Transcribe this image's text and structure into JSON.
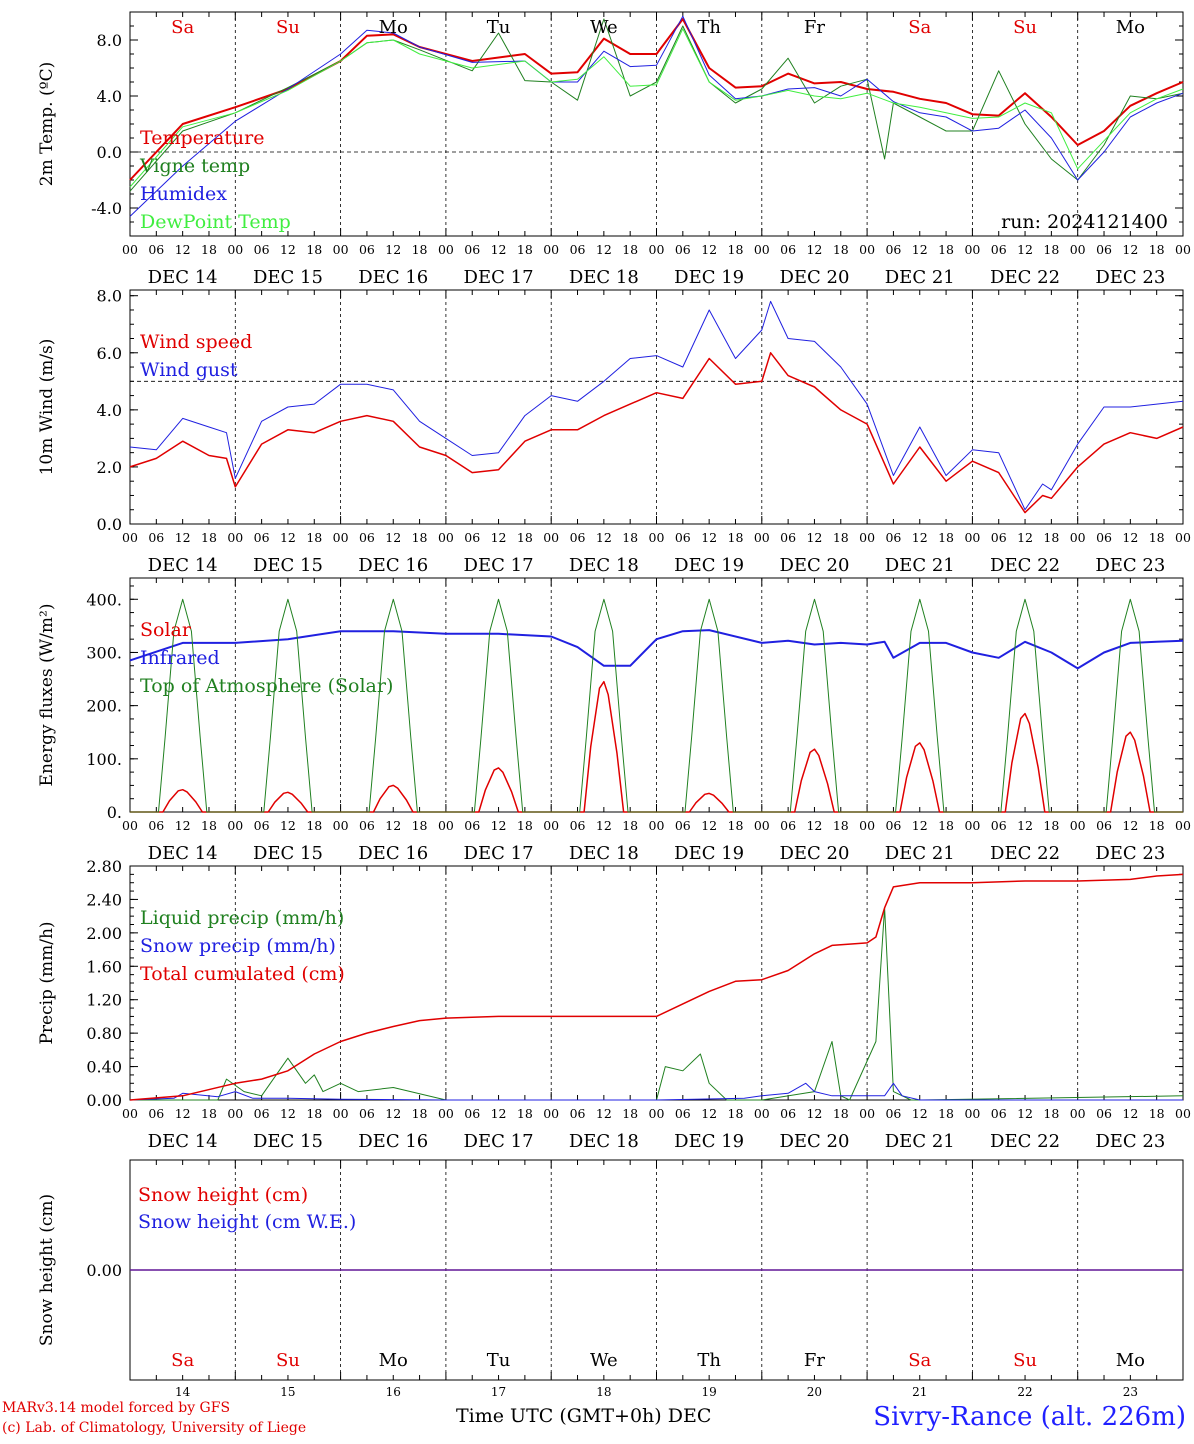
{
  "run_label": "run: 2024121400",
  "time_axis": {
    "hours": [
      "00",
      "06",
      "12",
      "18"
    ],
    "days": [
      "DEC 14",
      "DEC 15",
      "DEC 16",
      "DEC 17",
      "DEC 18",
      "DEC 19",
      "DEC 20",
      "DEC 21",
      "DEC 22",
      "DEC 23"
    ],
    "day_numbers": [
      "14",
      "15",
      "16",
      "17",
      "18",
      "19",
      "20",
      "21",
      "22",
      "23"
    ],
    "weekdays": [
      "Sa",
      "Su",
      "Mo",
      "Tu",
      "We",
      "Th",
      "Fr",
      "Sa",
      "Su",
      "Mo"
    ],
    "weekend_color": "#e00000",
    "weekday_color": "#000000"
  },
  "footer": {
    "model": "MARv3.14 model forced by GFS",
    "credit": "(c) Lab. of Climatology, University of Liege",
    "xlabel": "Time UTC (GMT+0h) DEC",
    "station": "Sivry-Rance (alt. 226m)"
  },
  "chart_data": [
    {
      "type": "line",
      "ylabel": "2m Temp. (ºC)",
      "ylim": [
        -6,
        10
      ],
      "yticks": [
        "-4.0",
        "0.0",
        "4.0",
        "8.0"
      ],
      "ytick_values": [
        -4,
        0,
        4,
        8
      ],
      "ref_lines": [
        0
      ],
      "x_unit": "hours since DEC 14 00 UTC",
      "series": [
        {
          "name": "Temperature",
          "color": "#e00000",
          "width": 2,
          "x": [
            0,
            12,
            24,
            36,
            48,
            54,
            60,
            66,
            78,
            90,
            96,
            102,
            108,
            114,
            120,
            126,
            132,
            138,
            144,
            150,
            156,
            162,
            168,
            174,
            180,
            186,
            192,
            198,
            204,
            210,
            216,
            222,
            228,
            234,
            240
          ],
          "y": [
            -2,
            2,
            3.2,
            4.5,
            6.5,
            8.3,
            8.4,
            7.5,
            6.5,
            7,
            5.6,
            5.7,
            8.1,
            7,
            7,
            9.5,
            6,
            4.6,
            4.7,
            5.6,
            4.9,
            5,
            4.5,
            4.3,
            3.8,
            3.5,
            2.7,
            2.6,
            4.2,
            2.5,
            0.5,
            1.5,
            3.3,
            4.2,
            5
          ]
        },
        {
          "name": "Vigne temp",
          "color": "#208020",
          "width": 1,
          "x": [
            0,
            12,
            24,
            36,
            48,
            54,
            60,
            66,
            78,
            84,
            90,
            96,
            102,
            108,
            114,
            120,
            126,
            132,
            138,
            144,
            150,
            156,
            162,
            168,
            172,
            174,
            180,
            186,
            192,
            198,
            204,
            210,
            216,
            222,
            228,
            234,
            240
          ],
          "y": [
            -2.8,
            1.5,
            2.8,
            4.6,
            6.5,
            7.8,
            8,
            7.3,
            5.8,
            8.5,
            5.1,
            5,
            3.7,
            9.5,
            4,
            5,
            9,
            5,
            3.5,
            4.5,
            6.7,
            3.5,
            4.7,
            5.2,
            -0.5,
            3.5,
            2.5,
            1.5,
            1.5,
            5.8,
            2,
            -0.5,
            -2,
            0.5,
            4,
            3.8,
            4.2
          ]
        },
        {
          "name": "Humidex",
          "color": "#2020e0",
          "width": 1,
          "x": [
            0,
            12,
            24,
            36,
            48,
            54,
            60,
            66,
            78,
            90,
            96,
            102,
            108,
            114,
            120,
            126,
            132,
            138,
            144,
            150,
            156,
            162,
            168,
            174,
            180,
            186,
            192,
            198,
            204,
            210,
            216,
            222,
            228,
            234,
            240
          ],
          "y": [
            -4.6,
            -1,
            2.2,
            4.5,
            7,
            8.7,
            8.5,
            7.5,
            6.4,
            6.5,
            5,
            5,
            7.2,
            6.1,
            6.2,
            9.7,
            5.5,
            3.8,
            4,
            4.5,
            4.6,
            4,
            5.2,
            3.6,
            2.8,
            2.5,
            1.5,
            1.7,
            3,
            1,
            -2,
            0,
            2.5,
            3.5,
            4.2
          ]
        },
        {
          "name": "DewPoint Temp",
          "color": "#40ee40",
          "width": 1,
          "x": [
            0,
            12,
            24,
            36,
            48,
            54,
            60,
            66,
            78,
            90,
            96,
            102,
            108,
            114,
            120,
            126,
            132,
            138,
            144,
            150,
            156,
            162,
            168,
            174,
            180,
            186,
            192,
            198,
            204,
            210,
            216,
            222,
            228,
            234,
            240
          ],
          "y": [
            -2.5,
            1.8,
            2.8,
            4.4,
            6.5,
            7.8,
            8,
            7,
            6,
            6.5,
            5,
            5.2,
            6.8,
            4.7,
            4.8,
            8.8,
            5,
            3.7,
            4,
            4.4,
            4,
            3.8,
            4.2,
            3.5,
            3.2,
            2.8,
            2.4,
            2.5,
            3.5,
            2.8,
            -1.2,
            0.8,
            2.8,
            3.8,
            4.5
          ]
        }
      ]
    },
    {
      "type": "line",
      "ylabel": "10m Wind (m/s)",
      "ylim": [
        0,
        8.2
      ],
      "yticks": [
        "0.0",
        "2.0",
        "4.0",
        "6.0",
        "8.0"
      ],
      "ytick_values": [
        0,
        2,
        4,
        6,
        8
      ],
      "ref_lines": [
        5
      ],
      "x_unit": "hours since DEC 14 00 UTC",
      "series": [
        {
          "name": "Wind speed",
          "color": "#e00000",
          "width": 1.5,
          "x": [
            0,
            6,
            12,
            18,
            22,
            24,
            30,
            36,
            42,
            48,
            54,
            60,
            66,
            72,
            78,
            84,
            90,
            96,
            102,
            108,
            114,
            120,
            126,
            132,
            138,
            144,
            146,
            150,
            156,
            162,
            168,
            174,
            180,
            186,
            192,
            198,
            204,
            208,
            210,
            216,
            222,
            228,
            234,
            240
          ],
          "y": [
            2,
            2.3,
            2.9,
            2.4,
            2.3,
            1.3,
            2.8,
            3.3,
            3.2,
            3.6,
            3.8,
            3.6,
            2.7,
            2.4,
            1.8,
            1.9,
            2.9,
            3.3,
            3.3,
            3.8,
            4.2,
            4.6,
            4.4,
            5.8,
            4.9,
            5,
            6,
            5.2,
            4.8,
            4,
            3.5,
            1.4,
            2.7,
            1.5,
            2.2,
            1.8,
            0.4,
            1,
            0.9,
            2,
            2.8,
            3.2,
            3,
            3.4
          ]
        },
        {
          "name": "Wind gust",
          "color": "#2020e0",
          "width": 1,
          "x": [
            0,
            6,
            12,
            18,
            22,
            24,
            30,
            36,
            42,
            48,
            54,
            60,
            66,
            72,
            78,
            84,
            90,
            96,
            102,
            108,
            114,
            120,
            126,
            132,
            138,
            144,
            146,
            150,
            156,
            162,
            168,
            174,
            180,
            186,
            192,
            198,
            204,
            208,
            210,
            216,
            222,
            228,
            234,
            240
          ],
          "y": [
            2.7,
            2.6,
            3.7,
            3.4,
            3.2,
            1.6,
            3.6,
            4.1,
            4.2,
            4.9,
            4.9,
            4.7,
            3.6,
            3,
            2.4,
            2.5,
            3.8,
            4.5,
            4.3,
            5,
            5.8,
            5.9,
            5.5,
            7.5,
            5.8,
            6.8,
            7.8,
            6.5,
            6.4,
            5.5,
            4.2,
            1.7,
            3.4,
            1.7,
            2.6,
            2.5,
            0.5,
            1.4,
            1.2,
            2.8,
            4.1,
            4.1,
            4.2,
            4.3
          ]
        }
      ]
    },
    {
      "type": "line",
      "ylabel": "Energy fluxes (W/m²)",
      "ylim": [
        0,
        440
      ],
      "yticks": [
        "0.",
        "100.",
        "200.",
        "300.",
        "400."
      ],
      "ytick_values": [
        0,
        100,
        200,
        300,
        400
      ],
      "ref_lines": [],
      "x_unit": "hours since DEC 14 00 UTC",
      "series": [
        {
          "name": "Solar",
          "color": "#e00000",
          "width": 1.5,
          "day_peaks": [
            42,
            37,
            50,
            83,
            245,
            35,
            118,
            130,
            185,
            150
          ]
        },
        {
          "name": "Infrared",
          "color": "#2020e0",
          "width": 2,
          "x": [
            0,
            12,
            24,
            36,
            48,
            60,
            72,
            84,
            96,
            102,
            108,
            114,
            120,
            126,
            132,
            144,
            150,
            156,
            162,
            168,
            172,
            174,
            180,
            186,
            192,
            198,
            204,
            210,
            216,
            222,
            228,
            234,
            240
          ],
          "y": [
            285,
            318,
            318,
            325,
            340,
            340,
            335,
            335,
            330,
            310,
            275,
            275,
            325,
            340,
            342,
            318,
            322,
            315,
            318,
            315,
            320,
            290,
            318,
            318,
            300,
            290,
            320,
            300,
            270,
            300,
            318,
            320,
            322
          ]
        },
        {
          "name": "Top of Atmosphere (Solar)",
          "color": "#208020",
          "width": 1,
          "day_peaks": [
            400,
            400,
            400,
            400,
            400,
            400,
            400,
            400,
            400,
            400
          ]
        }
      ]
    },
    {
      "type": "line",
      "ylabel": "Precip (mm/h)",
      "ylim": [
        0,
        2.8
      ],
      "yticks": [
        "0.00",
        "0.40",
        "0.80",
        "1.20",
        "1.60",
        "2.00",
        "2.40",
        "2.80"
      ],
      "ytick_values": [
        0,
        0.4,
        0.8,
        1.2,
        1.6,
        2.0,
        2.4,
        2.8
      ],
      "ref_lines": [],
      "x_unit": "hours since DEC 14 00 UTC",
      "series": [
        {
          "name": "Liquid precip (mm/h)",
          "color": "#208020",
          "width": 1,
          "x": [
            0,
            20,
            22,
            26,
            30,
            36,
            40,
            42,
            44,
            48,
            52,
            60,
            72,
            96,
            120,
            122,
            126,
            130,
            132,
            136,
            144,
            156,
            160,
            162,
            164,
            170,
            172,
            174,
            178,
            180,
            240
          ],
          "y": [
            0,
            0,
            0.25,
            0.1,
            0.05,
            0.5,
            0.2,
            0.3,
            0.1,
            0.2,
            0.1,
            0.15,
            0,
            0,
            0,
            0.4,
            0.35,
            0.55,
            0.2,
            0,
            0,
            0.1,
            0.7,
            0.05,
            0,
            0.7,
            2.3,
            0.1,
            0,
            0,
            0.05
          ]
        },
        {
          "name": "Snow precip (mm/h)",
          "color": "#2020e0",
          "width": 1,
          "x": [
            0,
            10,
            12,
            20,
            24,
            28,
            36,
            48,
            72,
            100,
            120,
            140,
            144,
            150,
            154,
            156,
            160,
            172,
            174,
            176,
            180,
            240
          ],
          "y": [
            0,
            0.02,
            0.08,
            0.04,
            0.1,
            0.02,
            0.02,
            0.01,
            0,
            0,
            0,
            0.02,
            0.05,
            0.08,
            0.2,
            0.1,
            0.05,
            0.05,
            0.2,
            0.05,
            0,
            0
          ]
        },
        {
          "name": "Total cumulated (cm)",
          "color": "#e00000",
          "width": 1.5,
          "x": [
            0,
            12,
            24,
            30,
            36,
            42,
            48,
            54,
            60,
            66,
            72,
            78,
            84,
            96,
            108,
            120,
            126,
            132,
            138,
            144,
            150,
            156,
            160,
            168,
            170,
            172,
            174,
            180,
            192,
            204,
            216,
            228,
            234,
            240
          ],
          "y": [
            0,
            0.05,
            0.2,
            0.25,
            0.35,
            0.55,
            0.7,
            0.8,
            0.88,
            0.95,
            0.98,
            0.99,
            1.0,
            1.0,
            1.0,
            1.0,
            1.15,
            1.3,
            1.42,
            1.44,
            1.55,
            1.75,
            1.85,
            1.88,
            1.95,
            2.3,
            2.55,
            2.6,
            2.6,
            2.62,
            2.62,
            2.64,
            2.68,
            2.7
          ]
        }
      ]
    },
    {
      "type": "line",
      "ylabel": "Snow height (cm)",
      "ylim": [
        -1,
        1
      ],
      "yticks": [
        "0.00"
      ],
      "ytick_values": [
        0
      ],
      "ref_lines": [],
      "x_unit": "hours since DEC 14 00 UTC",
      "series": [
        {
          "name": "Snow height (cm)",
          "color": "#e00000",
          "width": 1.5,
          "x": [
            0,
            240
          ],
          "y": [
            0,
            0
          ]
        },
        {
          "name": "Snow height (cm W.E.)",
          "color": "#2020e0",
          "width": 1,
          "x": [
            0,
            240
          ],
          "y": [
            0,
            0
          ]
        }
      ]
    }
  ]
}
